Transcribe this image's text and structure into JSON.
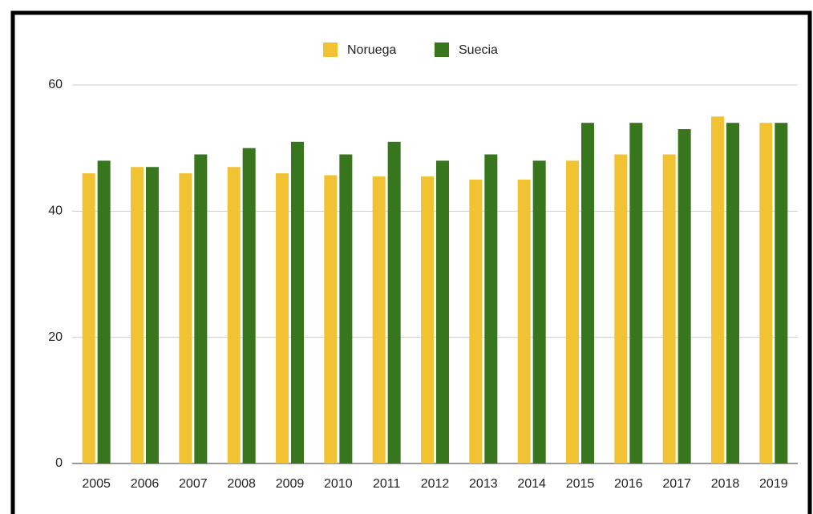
{
  "chart_data": {
    "type": "bar",
    "categories": [
      "2005",
      "2006",
      "2007",
      "2008",
      "2009",
      "2010",
      "2011",
      "2012",
      "2013",
      "2014",
      "2015",
      "2016",
      "2017",
      "2018",
      "2019"
    ],
    "series": [
      {
        "name": "Noruega",
        "color": "#f1c232",
        "values": [
          46,
          47,
          46,
          47,
          46,
          45.7,
          45.5,
          45.5,
          45,
          45,
          48,
          49,
          49,
          55,
          54
        ]
      },
      {
        "name": "Suecia",
        "color": "#38761d",
        "values": [
          48,
          47,
          49,
          50,
          51,
          49,
          51,
          48,
          49,
          48,
          54,
          54,
          53,
          54,
          54
        ]
      }
    ],
    "ylim": [
      0,
      60
    ],
    "yticks": [
      0,
      20,
      40,
      60
    ],
    "grid": true,
    "legend": "top"
  }
}
